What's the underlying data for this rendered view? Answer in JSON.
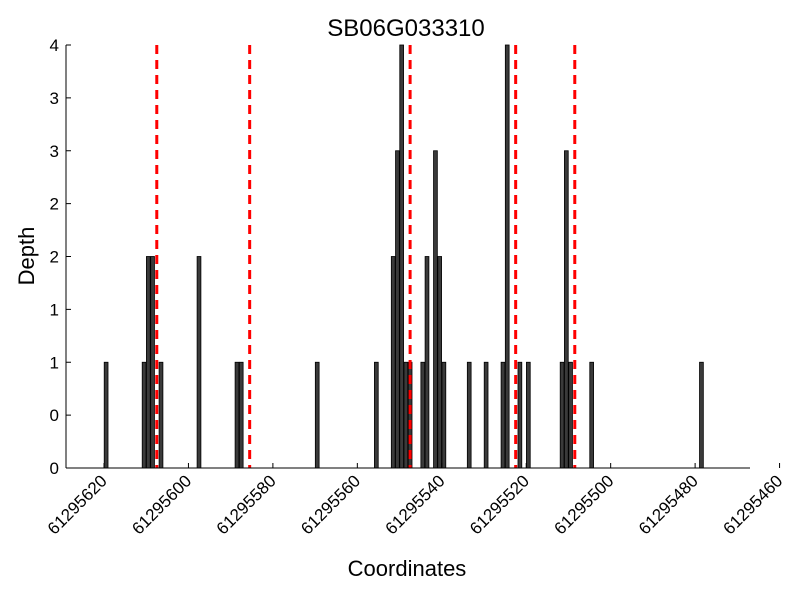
{
  "chart_data": {
    "type": "bar",
    "title": "SB06G033310",
    "xlabel": "Coordinates",
    "ylabel": "Depth",
    "xlim": [
      61295629,
      61295467
    ],
    "ylim_tick_positions": [
      0,
      0.5,
      1,
      1.5,
      2,
      2.5,
      3,
      3.5,
      4
    ],
    "y_tick_labels": [
      "0",
      "0",
      "1",
      "1",
      "2",
      "2",
      "3",
      "3",
      "4"
    ],
    "x_ticks": [
      {
        "value": 61295620,
        "label": "61295620"
      },
      {
        "value": 61295600,
        "label": "61295600"
      },
      {
        "value": 61295580,
        "label": "61295580"
      },
      {
        "value": 61295560,
        "label": "61295560"
      },
      {
        "value": 61295540,
        "label": "61295540"
      },
      {
        "value": 61295520,
        "label": "61295520"
      },
      {
        "value": 61295500,
        "label": "61295500"
      },
      {
        "value": 61295480,
        "label": "61295480"
      },
      {
        "value": 61295460,
        "label": "61295460"
      }
    ],
    "bars": [
      {
        "x": 61295619.5,
        "depth": 1
      },
      {
        "x": 61295610.5,
        "depth": 1
      },
      {
        "x": 61295609.5,
        "depth": 2
      },
      {
        "x": 61295608.5,
        "depth": 2
      },
      {
        "x": 61295606.5,
        "depth": 1
      },
      {
        "x": 61295597.5,
        "depth": 2
      },
      {
        "x": 61295588.5,
        "depth": 1
      },
      {
        "x": 61295587.5,
        "depth": 1
      },
      {
        "x": 61295569.5,
        "depth": 1
      },
      {
        "x": 61295555.5,
        "depth": 1
      },
      {
        "x": 61295551.5,
        "depth": 2
      },
      {
        "x": 61295550.5,
        "depth": 3
      },
      {
        "x": 61295549.5,
        "depth": 4
      },
      {
        "x": 61295548.5,
        "depth": 1
      },
      {
        "x": 61295547.5,
        "depth": 1
      },
      {
        "x": 61295544.5,
        "depth": 1
      },
      {
        "x": 61295543.5,
        "depth": 2
      },
      {
        "x": 61295541.5,
        "depth": 3
      },
      {
        "x": 61295540.5,
        "depth": 2
      },
      {
        "x": 61295539.5,
        "depth": 1
      },
      {
        "x": 61295533.5,
        "depth": 1
      },
      {
        "x": 61295529.5,
        "depth": 1
      },
      {
        "x": 61295525.5,
        "depth": 1
      },
      {
        "x": 61295524.5,
        "depth": 4
      },
      {
        "x": 61295521.5,
        "depth": 1
      },
      {
        "x": 61295519.5,
        "depth": 1
      },
      {
        "x": 61295511.5,
        "depth": 1
      },
      {
        "x": 61295510.5,
        "depth": 3
      },
      {
        "x": 61295509.5,
        "depth": 1
      },
      {
        "x": 61295504.5,
        "depth": 1
      },
      {
        "x": 61295478.5,
        "depth": 1
      }
    ],
    "reference_lines": [
      61295607.5,
      61295585.5,
      61295547.5,
      61295522.5,
      61295508.5
    ],
    "colors": {
      "bar_fill": "#3a3a3a",
      "bar_edge": "#000000",
      "reference_line": "#ff0000"
    },
    "grid": false
  }
}
